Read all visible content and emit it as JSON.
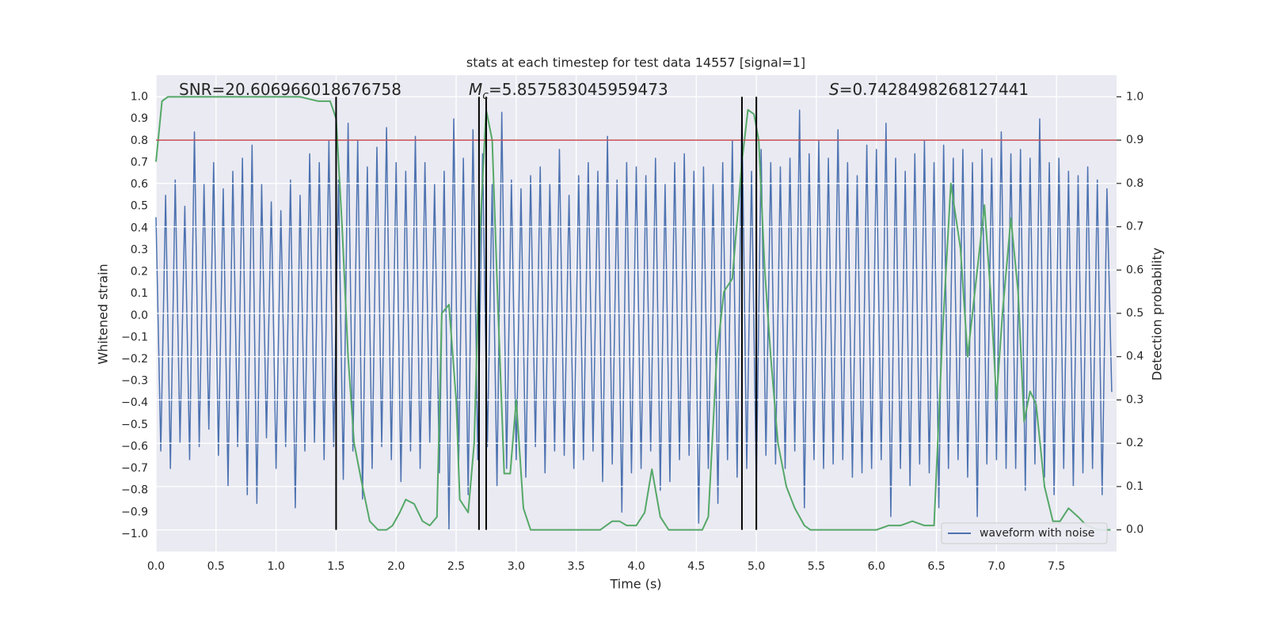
{
  "chart_data": {
    "type": "line",
    "title": "stats at each timestep for test data 14557 [signal=1]",
    "xlabel": "Time (s)",
    "ylabel": "Whitened strain",
    "y2label": "Detection probability",
    "annotations": [
      {
        "text": "SNR=20.606966018676758"
      },
      {
        "symbol": "M",
        "subscript": "c",
        "text": "=5.857583045959473"
      },
      {
        "symbol": "S",
        "text": "=0.7428498268127441"
      }
    ],
    "xlim": [
      0,
      8
    ],
    "ylim": [
      -1.08,
      1.1
    ],
    "y2lim": [
      -0.05,
      1.05
    ],
    "xticks": [
      {
        "value": 0,
        "label": "0.0"
      },
      0.5,
      {
        "value": 1,
        "label": "1.0"
      },
      1.5,
      {
        "value": 2,
        "label": "2.0"
      },
      2.5,
      {
        "value": 3,
        "label": "3.0"
      },
      3.5,
      {
        "value": 4,
        "label": "4.0"
      },
      4.5,
      {
        "value": 5,
        "label": "5.0"
      },
      5.5,
      {
        "value": 6,
        "label": "6.0"
      },
      6.5,
      {
        "value": 7,
        "label": "7.0"
      },
      7.5
    ],
    "yticks": [
      {
        "value": -1,
        "label": "−1.0"
      },
      {
        "value": -0.9,
        "label": "−0.9"
      },
      {
        "value": -0.8,
        "label": "−0.8"
      },
      {
        "value": -0.7,
        "label": "−0.7"
      },
      {
        "value": -0.6,
        "label": "−0.6"
      },
      {
        "value": -0.5,
        "label": "−0.5"
      },
      {
        "value": -0.4,
        "label": "−0.4"
      },
      {
        "value": -0.3,
        "label": "−0.3"
      },
      {
        "value": -0.2,
        "label": "−0.2"
      },
      {
        "value": -0.1,
        "label": "−0.1"
      },
      {
        "value": 0,
        "label": "0.0"
      },
      0.1,
      0.2,
      0.3,
      0.4,
      0.5,
      0.6,
      0.7,
      0.8,
      0.9,
      {
        "value": 1,
        "label": "1.0"
      }
    ],
    "y2ticks": [
      {
        "value": 0,
        "label": "0.0"
      },
      0.1,
      0.2,
      0.3,
      0.4,
      0.5,
      0.6,
      0.7,
      0.8,
      0.9,
      {
        "value": 1,
        "label": "1.0"
      }
    ],
    "grid": true,
    "legend": "lower right",
    "series": [
      {
        "name": "waveform with noise",
        "color": "#4c72b0",
        "x": [
          0,
          0.04,
          0.08,
          0.12,
          0.16,
          0.2,
          0.24,
          0.28,
          0.32,
          0.36,
          0.4,
          0.44,
          0.48,
          0.52,
          0.56,
          0.6,
          0.64,
          0.68,
          0.72,
          0.76,
          0.8,
          0.84,
          0.88,
          0.92,
          0.96,
          1,
          1.04,
          1.08,
          1.12,
          1.16,
          1.2,
          1.24,
          1.28,
          1.32,
          1.36,
          1.4,
          1.44,
          1.48,
          1.52,
          1.56,
          1.6,
          1.64,
          1.68,
          1.72,
          1.76,
          1.8,
          1.84,
          1.88,
          1.92,
          1.96,
          2,
          2.04,
          2.08,
          2.12,
          2.16,
          2.2,
          2.24,
          2.28,
          2.32,
          2.36,
          2.4,
          2.44,
          2.48,
          2.52,
          2.56,
          2.6,
          2.64,
          2.68,
          2.72,
          2.76,
          2.8,
          2.84,
          2.88,
          2.92,
          2.96,
          3,
          3.04,
          3.08,
          3.12,
          3.16,
          3.2,
          3.24,
          3.28,
          3.32,
          3.36,
          3.4,
          3.44,
          3.48,
          3.52,
          3.56,
          3.6,
          3.64,
          3.68,
          3.72,
          3.76,
          3.8,
          3.84,
          3.88,
          3.92,
          3.96,
          4,
          4.04,
          4.08,
          4.12,
          4.16,
          4.2,
          4.24,
          4.28,
          4.32,
          4.36,
          4.4,
          4.44,
          4.48,
          4.52,
          4.56,
          4.6,
          4.64,
          4.68,
          4.72,
          4.76,
          4.8,
          4.84,
          4.88,
          4.92,
          4.96,
          5,
          5.04,
          5.08,
          5.12,
          5.16,
          5.2,
          5.24,
          5.28,
          5.32,
          5.36,
          5.4,
          5.44,
          5.48,
          5.52,
          5.56,
          5.6,
          5.64,
          5.68,
          5.72,
          5.76,
          5.8,
          5.84,
          5.88,
          5.92,
          5.96,
          6,
          6.04,
          6.08,
          6.12,
          6.16,
          6.2,
          6.24,
          6.28,
          6.32,
          6.36,
          6.4,
          6.44,
          6.48,
          6.52,
          6.56,
          6.6,
          6.64,
          6.68,
          6.72,
          6.76,
          6.8,
          6.84,
          6.88,
          6.92,
          6.96,
          7,
          7.04,
          7.08,
          7.12,
          7.16,
          7.2,
          7.24,
          7.28,
          7.32,
          7.36,
          7.4,
          7.44,
          7.48,
          7.52,
          7.56,
          7.6,
          7.64,
          7.68,
          7.72,
          7.76,
          7.8,
          7.84,
          7.88,
          7.92,
          7.96
        ],
        "values": [
          0.45,
          -0.62,
          0.55,
          -0.7,
          0.62,
          -0.58,
          0.5,
          -0.66,
          0.84,
          -0.6,
          0.6,
          -0.52,
          0.7,
          -0.64,
          0.58,
          -0.78,
          0.66,
          -0.6,
          0.72,
          -0.82,
          0.78,
          -0.86,
          0.6,
          -0.56,
          0.52,
          -0.7,
          0.48,
          -0.6,
          0.62,
          -0.88,
          0.55,
          -0.62,
          0.74,
          -0.58,
          0.7,
          -0.66,
          0.8,
          -0.6,
          0.62,
          -0.75,
          0.88,
          -0.62,
          0.8,
          -0.84,
          0.68,
          -0.7,
          0.77,
          -0.6,
          0.86,
          -0.66,
          0.7,
          -0.76,
          0.66,
          -0.62,
          0.82,
          -0.7,
          0.7,
          -0.58,
          0.6,
          -0.72,
          0.66,
          -0.98,
          0.9,
          -0.7,
          0.72,
          -0.82,
          0.85,
          -0.66,
          0.74,
          -0.6,
          0.6,
          -0.78,
          0.93,
          -0.7,
          0.62,
          -0.66,
          0.58,
          -0.74,
          0.64,
          -0.6,
          0.68,
          -0.72,
          0.6,
          -0.62,
          0.76,
          -0.64,
          0.55,
          -0.7,
          0.64,
          -0.66,
          0.7,
          -0.62,
          0.66,
          -0.76,
          0.82,
          -0.68,
          0.62,
          -0.9,
          0.7,
          -0.72,
          0.68,
          -0.7,
          0.64,
          -0.62,
          0.72,
          -0.8,
          0.6,
          -0.76,
          0.7,
          -0.66,
          0.74,
          -0.64,
          0.66,
          -0.95,
          0.68,
          -0.7,
          0.6,
          -0.86,
          0.7,
          -0.66,
          0.8,
          -0.74,
          0.94,
          -0.7,
          0.66,
          -0.78,
          0.76,
          -0.64,
          0.7,
          -0.68,
          0.68,
          -0.7,
          0.72,
          -0.62,
          0.94,
          -0.88,
          0.74,
          -0.66,
          0.8,
          -0.7,
          0.72,
          -0.68,
          0.85,
          -0.66,
          0.7,
          -0.74,
          0.64,
          -0.72,
          0.78,
          -0.7,
          0.76,
          -0.66,
          0.88,
          -0.92,
          0.72,
          -0.7,
          0.66,
          -0.78,
          0.74,
          -0.68,
          0.8,
          -0.72,
          0.7,
          -0.88,
          0.78,
          -0.7,
          0.72,
          -0.66,
          0.76,
          -0.74,
          0.7,
          -0.92,
          0.76,
          -0.68,
          0.72,
          -0.66,
          0.84,
          -0.7,
          0.74,
          -0.7,
          0.76,
          -0.8,
          0.72,
          -0.68,
          0.9,
          -0.74,
          0.7,
          -0.82,
          0.72,
          -0.7,
          0.66,
          -0.78,
          0.64,
          -0.72,
          0.68,
          -0.7,
          0.62,
          -0.82,
          0.58,
          -0.35
        ]
      },
      {
        "color": "#55a868",
        "axis": "y2",
        "x": [
          0,
          0.05,
          0.1,
          0.5,
          1,
          1.2,
          1.35,
          1.45,
          1.5,
          1.55,
          1.6,
          1.65,
          1.72,
          1.78,
          1.85,
          1.92,
          1.97,
          2.03,
          2.08,
          2.15,
          2.22,
          2.28,
          2.34,
          2.38,
          2.44,
          2.5,
          2.53,
          2.6,
          2.65,
          2.7,
          2.75,
          2.8,
          2.85,
          2.9,
          2.95,
          3,
          3.06,
          3.12,
          3.3,
          3.5,
          3.7,
          3.8,
          3.86,
          3.92,
          4,
          4.07,
          4.13,
          4.2,
          4.27,
          4.4,
          4.55,
          4.6,
          4.67,
          4.73,
          4.8,
          4.88,
          4.93,
          4.98,
          5.02,
          5.07,
          5.12,
          5.18,
          5.25,
          5.32,
          5.4,
          5.45,
          5.55,
          5.7,
          5.9,
          6,
          6.1,
          6.2,
          6.3,
          6.4,
          6.48,
          6.55,
          6.62,
          6.7,
          6.76,
          6.82,
          6.9,
          6.95,
          7,
          7.05,
          7.12,
          7.18,
          7.23,
          7.28,
          7.33,
          7.4,
          7.47,
          7.53,
          7.6,
          7.68,
          7.75,
          7.85,
          7.95
        ],
        "values": [
          0.85,
          0.99,
          1,
          1,
          1,
          1,
          0.99,
          0.99,
          0.95,
          0.7,
          0.4,
          0.2,
          0.1,
          0.02,
          0,
          0,
          0.01,
          0.04,
          0.07,
          0.06,
          0.02,
          0.01,
          0.03,
          0.5,
          0.52,
          0.3,
          0.07,
          0.04,
          0.2,
          0.7,
          0.97,
          0.9,
          0.5,
          0.13,
          0.13,
          0.3,
          0.05,
          0,
          0,
          0,
          0,
          0.02,
          0.02,
          0.01,
          0.01,
          0.04,
          0.14,
          0.03,
          0,
          0,
          0,
          0.03,
          0.4,
          0.55,
          0.58,
          0.85,
          0.97,
          0.96,
          0.9,
          0.6,
          0.4,
          0.2,
          0.1,
          0.05,
          0.01,
          0,
          0,
          0,
          0,
          0,
          0.01,
          0.01,
          0.02,
          0.01,
          0.01,
          0.45,
          0.8,
          0.65,
          0.4,
          0.55,
          0.75,
          0.55,
          0.3,
          0.5,
          0.72,
          0.55,
          0.25,
          0.32,
          0.29,
          0.1,
          0.02,
          0.02,
          0.05,
          0.03,
          0.01,
          0,
          0
        ]
      }
    ],
    "hlines": [
      {
        "value": 0.9,
        "axis": "y2",
        "color": "#c44e52"
      }
    ],
    "vlines": {
      "x": [
        1.5,
        2.69,
        2.75,
        4.88,
        5.0
      ],
      "y2range": [
        0,
        1
      ],
      "color": "#000000"
    }
  }
}
